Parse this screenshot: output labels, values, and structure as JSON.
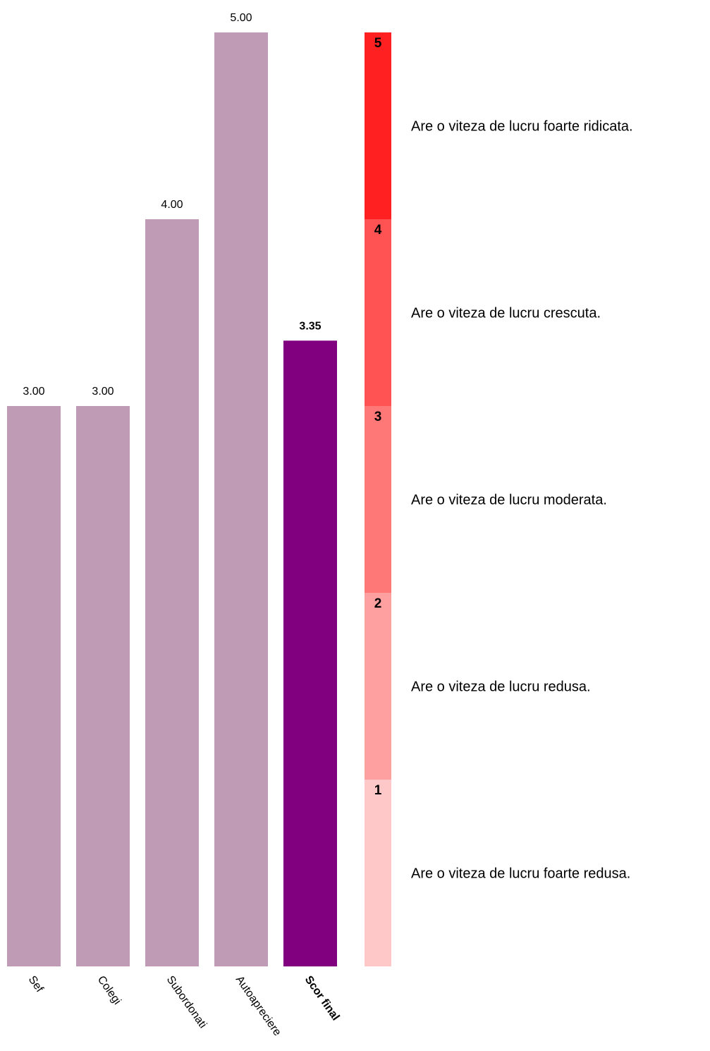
{
  "chart_data": {
    "type": "bar",
    "categories": [
      "Sef",
      "Colegi",
      "Subordonati",
      "Autoapreciere",
      "Scor final"
    ],
    "values": [
      3.0,
      3.0,
      4.0,
      5.0,
      3.35
    ],
    "value_labels": [
      "3.00",
      "3.00",
      "4.00",
      "5.00",
      "3.35"
    ],
    "highlight_category": "Scor final",
    "ylim": [
      0,
      5
    ],
    "grid": false,
    "colors": {
      "bar": "#bf9bb5",
      "highlight_bar": "#800080",
      "text": "#000000"
    },
    "scale": {
      "levels": [
        {
          "level": "5",
          "description": "Are o viteza de lucru foarte ridicata.",
          "color": "#ff2121"
        },
        {
          "level": "4",
          "description": "Are o viteza de lucru crescuta.",
          "color": "#ff5252"
        },
        {
          "level": "3",
          "description": "Are o viteza de lucru moderata.",
          "color": "#ff7878"
        },
        {
          "level": "2",
          "description": "Are o viteza de lucru redusa.",
          "color": "#ffa0a0"
        },
        {
          "level": "1",
          "description": "Are o viteza de lucru foarte redusa.",
          "color": "#ffc8c8"
        }
      ]
    }
  }
}
